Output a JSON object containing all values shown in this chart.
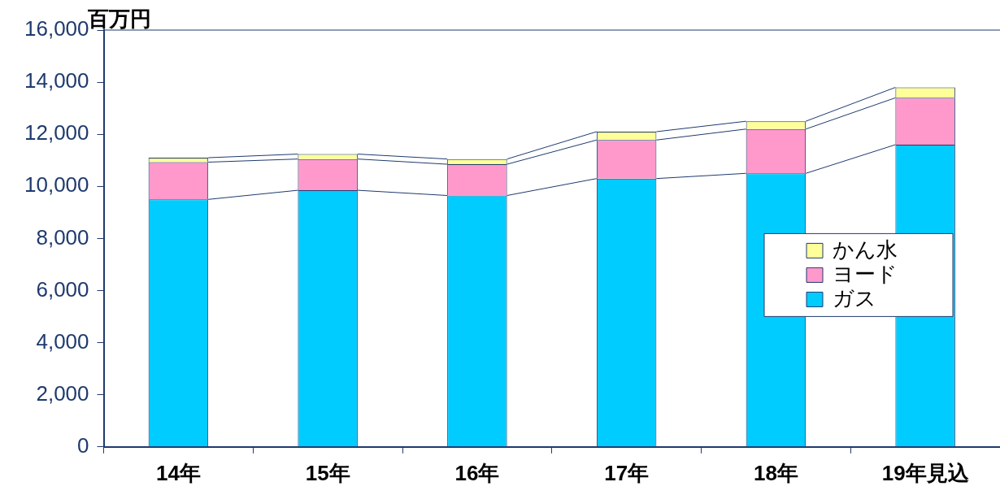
{
  "chart_data": {
    "type": "bar",
    "stacked": true,
    "ylabel": "百万円",
    "categories": [
      "14年",
      "15年",
      "16年",
      "17年",
      "18年",
      "19年見込"
    ],
    "series": [
      {
        "name": "ガス",
        "color": "#00ccff",
        "values": [
          9500,
          9850,
          9650,
          10300,
          10500,
          11600
        ]
      },
      {
        "name": "ヨード",
        "color": "#ff99cc",
        "values": [
          1430,
          1200,
          1200,
          1480,
          1700,
          1800
        ]
      },
      {
        "name": "かん水",
        "color": "#ffff99",
        "values": [
          170,
          190,
          200,
          320,
          300,
          400
        ]
      }
    ],
    "ylim": [
      0,
      16000
    ],
    "yticks": [
      0,
      {
        "value": 2000,
        "label": "2,000"
      },
      {
        "value": 4000,
        "label": "4,000"
      },
      {
        "value": 6000,
        "label": "6,000"
      },
      {
        "value": 8000,
        "label": "8,000"
      },
      {
        "value": 10000,
        "label": "10,000"
      },
      {
        "value": 12000,
        "label": "12,000"
      },
      {
        "value": 14000,
        "label": "14,000"
      },
      {
        "value": 16000,
        "label": "16,000"
      }
    ],
    "grid": false,
    "legend": "right"
  }
}
